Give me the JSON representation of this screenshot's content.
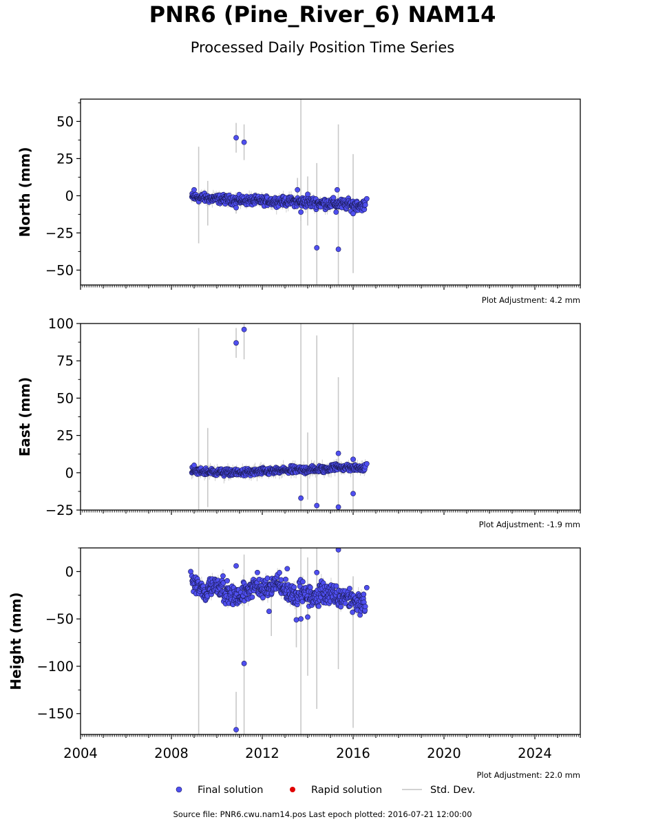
{
  "title": "PNR6 (Pine_River_6) NAM14",
  "subtitle": "Processed Daily Position Time Series",
  "legend": [
    {
      "label": "Final solution",
      "color": "#4f4ff0",
      "kind": "dot"
    },
    {
      "label": "Rapid solution",
      "color": "#e00000",
      "kind": "dot"
    },
    {
      "label": "Std. Dev.",
      "color": "#cccccc",
      "kind": "line"
    }
  ],
  "source_text": "Source file: PNR6.cwu.nam14.pos  Last epoch plotted: 2016-07-21 12:00:00",
  "chart_data": [
    {
      "type": "scatter",
      "ylabel": "North (mm)",
      "adjustment": "Plot Adjustment: 4.2 mm",
      "ylim": [
        -60,
        65
      ],
      "yticks": [
        -50,
        -25,
        0,
        25,
        50
      ],
      "xlim": [
        2004,
        2026
      ],
      "xticks": [
        2004,
        2008,
        2012,
        2016,
        2020,
        2024
      ],
      "show_xtick_labels": false,
      "series": [
        {
          "segments": [
            {
              "x0": 2008.9,
              "x1": 2010.9,
              "y0": -1,
              "y1": -3,
              "spread": 2.5
            },
            {
              "x0": 2010.9,
              "x1": 2013.5,
              "y0": -3,
              "y1": -4,
              "spread": 2.5
            },
            {
              "x0": 2013.5,
              "x1": 2016.55,
              "y0": -4,
              "y1": -6.5,
              "spread": 3
            }
          ],
          "outliers": [
            {
              "x": 2010.85,
              "y": 39,
              "err": 10
            },
            {
              "x": 2011.2,
              "y": 36,
              "err": 12
            },
            {
              "x": 2010.85,
              "y": -8,
              "err": 4
            },
            {
              "x": 2013.55,
              "y": 4,
              "err": 8
            },
            {
              "x": 2013.7,
              "y": -11,
              "err": 6
            },
            {
              "x": 2014.4,
              "y": -35,
              "err": 0
            },
            {
              "x": 2015.3,
              "y": 4,
              "err": 0
            },
            {
              "x": 2015.35,
              "y": -36,
              "err": 0
            },
            {
              "x": 2015.25,
              "y": -11,
              "err": 0
            },
            {
              "x": 2016.0,
              "y": -12,
              "err": 0
            },
            {
              "x": 2009.0,
              "y": 4,
              "err": 0
            },
            {
              "x": 2014.0,
              "y": 1,
              "err": 0
            },
            {
              "x": 2016.6,
              "y": -2,
              "err": 0
            }
          ],
          "errbars": [
            {
              "x": 2009.2,
              "y0": -32,
              "y1": 33
            },
            {
              "x": 2009.6,
              "y0": -20,
              "y1": 10
            },
            {
              "x": 2013.7,
              "y0": -60,
              "y1": 65
            },
            {
              "x": 2014.0,
              "y0": -20,
              "y1": 13
            },
            {
              "x": 2014.4,
              "y0": -60,
              "y1": 22
            },
            {
              "x": 2015.35,
              "y0": -60,
              "y1": 48
            },
            {
              "x": 2016.0,
              "y0": -52,
              "y1": 28
            }
          ]
        }
      ]
    },
    {
      "type": "scatter",
      "ylabel": "East (mm)",
      "adjustment": "Plot Adjustment: -1.9 mm",
      "ylim": [
        -25,
        100
      ],
      "yticks": [
        -25,
        0,
        25,
        50,
        75,
        100
      ],
      "xlim": [
        2004,
        2026
      ],
      "xticks": [
        2004,
        2008,
        2012,
        2016,
        2020,
        2024
      ],
      "show_xtick_labels": false,
      "series": [
        {
          "segments": [
            {
              "x0": 2008.9,
              "x1": 2011.0,
              "y0": 1,
              "y1": 0,
              "spread": 2
            },
            {
              "x0": 2011.0,
              "x1": 2013.0,
              "y0": 0,
              "y1": 1.5,
              "spread": 2
            },
            {
              "x0": 2013.0,
              "x1": 2015.0,
              "y0": 1.5,
              "y1": 2.5,
              "spread": 2.2
            },
            {
              "x0": 2015.0,
              "x1": 2016.55,
              "y0": 4,
              "y1": 3,
              "spread": 2
            }
          ],
          "outliers": [
            {
              "x": 2010.85,
              "y": 87,
              "err": 10
            },
            {
              "x": 2011.2,
              "y": 96,
              "err": 20
            },
            {
              "x": 2013.7,
              "y": -17,
              "err": 0
            },
            {
              "x": 2014.4,
              "y": -22,
              "err": 0
            },
            {
              "x": 2015.35,
              "y": -23,
              "err": 0
            },
            {
              "x": 2015.35,
              "y": 13,
              "err": 0
            },
            {
              "x": 2016.0,
              "y": 9,
              "err": 0
            },
            {
              "x": 2016.0,
              "y": -14,
              "err": 0
            },
            {
              "x": 2009.0,
              "y": 5,
              "err": 0
            },
            {
              "x": 2016.6,
              "y": 6,
              "err": 0
            }
          ],
          "errbars": [
            {
              "x": 2009.2,
              "y0": -25,
              "y1": 97
            },
            {
              "x": 2009.6,
              "y0": -23,
              "y1": 30
            },
            {
              "x": 2013.7,
              "y0": -25,
              "y1": 100
            },
            {
              "x": 2014.0,
              "y0": -18,
              "y1": 27
            },
            {
              "x": 2014.4,
              "y0": -25,
              "y1": 92
            },
            {
              "x": 2015.35,
              "y0": -25,
              "y1": 64
            },
            {
              "x": 2016.0,
              "y0": -25,
              "y1": 100
            }
          ]
        }
      ]
    },
    {
      "type": "scatter",
      "ylabel": "Height (mm)",
      "adjustment": "Plot Adjustment: 22.0 mm",
      "ylim": [
        -172,
        25
      ],
      "yticks": [
        -150,
        -100,
        -50,
        0
      ],
      "xlim": [
        2004,
        2026
      ],
      "xticks": [
        2004,
        2008,
        2012,
        2016,
        2020,
        2024
      ],
      "show_xtick_labels": true,
      "series": [
        {
          "segments": [
            {
              "x0": 2008.9,
              "x1": 2009.6,
              "y0": -10,
              "y1": -25,
              "spread": 9
            },
            {
              "x0": 2009.6,
              "x1": 2010.3,
              "y0": -15,
              "y1": -15,
              "spread": 9
            },
            {
              "x0": 2010.3,
              "x1": 2011.0,
              "y0": -20,
              "y1": -30,
              "spread": 9
            },
            {
              "x0": 2011.0,
              "x1": 2011.8,
              "y0": -25,
              "y1": -12,
              "spread": 9
            },
            {
              "x0": 2011.8,
              "x1": 2012.8,
              "y0": -20,
              "y1": -10,
              "spread": 9
            },
            {
              "x0": 2012.8,
              "x1": 2013.6,
              "y0": -15,
              "y1": -30,
              "spread": 9
            },
            {
              "x0": 2013.6,
              "x1": 2014.5,
              "y0": -20,
              "y1": -30,
              "spread": 10
            },
            {
              "x0": 2014.5,
              "x1": 2015.5,
              "y0": -20,
              "y1": -30,
              "spread": 10
            },
            {
              "x0": 2015.5,
              "x1": 2016.55,
              "y0": -25,
              "y1": -35,
              "spread": 10
            }
          ],
          "outliers": [
            {
              "x": 2010.85,
              "y": -167,
              "err": 40
            },
            {
              "x": 2011.2,
              "y": -97,
              "err": 0
            },
            {
              "x": 2012.3,
              "y": -42,
              "err": 0
            },
            {
              "x": 2013.5,
              "y": -51,
              "err": 0
            },
            {
              "x": 2013.7,
              "y": -50,
              "err": 0
            },
            {
              "x": 2014.0,
              "y": -48,
              "err": 0
            },
            {
              "x": 2014.4,
              "y": -1,
              "err": 0
            },
            {
              "x": 2015.35,
              "y": 23,
              "err": 0
            },
            {
              "x": 2010.85,
              "y": 6,
              "err": 0
            },
            {
              "x": 2008.85,
              "y": 0,
              "err": 0
            },
            {
              "x": 2013.1,
              "y": 3,
              "err": 0
            },
            {
              "x": 2016.6,
              "y": -17,
              "err": 0
            }
          ],
          "errbars": [
            {
              "x": 2009.2,
              "y0": -172,
              "y1": 25
            },
            {
              "x": 2011.2,
              "y0": -172,
              "y1": 18
            },
            {
              "x": 2013.7,
              "y0": -172,
              "y1": 25
            },
            {
              "x": 2014.0,
              "y0": -110,
              "y1": 15
            },
            {
              "x": 2014.4,
              "y0": -145,
              "y1": 25
            },
            {
              "x": 2015.35,
              "y0": -103,
              "y1": 25
            },
            {
              "x": 2016.0,
              "y0": -165,
              "y1": -5
            },
            {
              "x": 2013.5,
              "y0": -80,
              "y1": -20
            },
            {
              "x": 2012.4,
              "y0": -68,
              "y1": -20
            }
          ]
        }
      ]
    }
  ]
}
